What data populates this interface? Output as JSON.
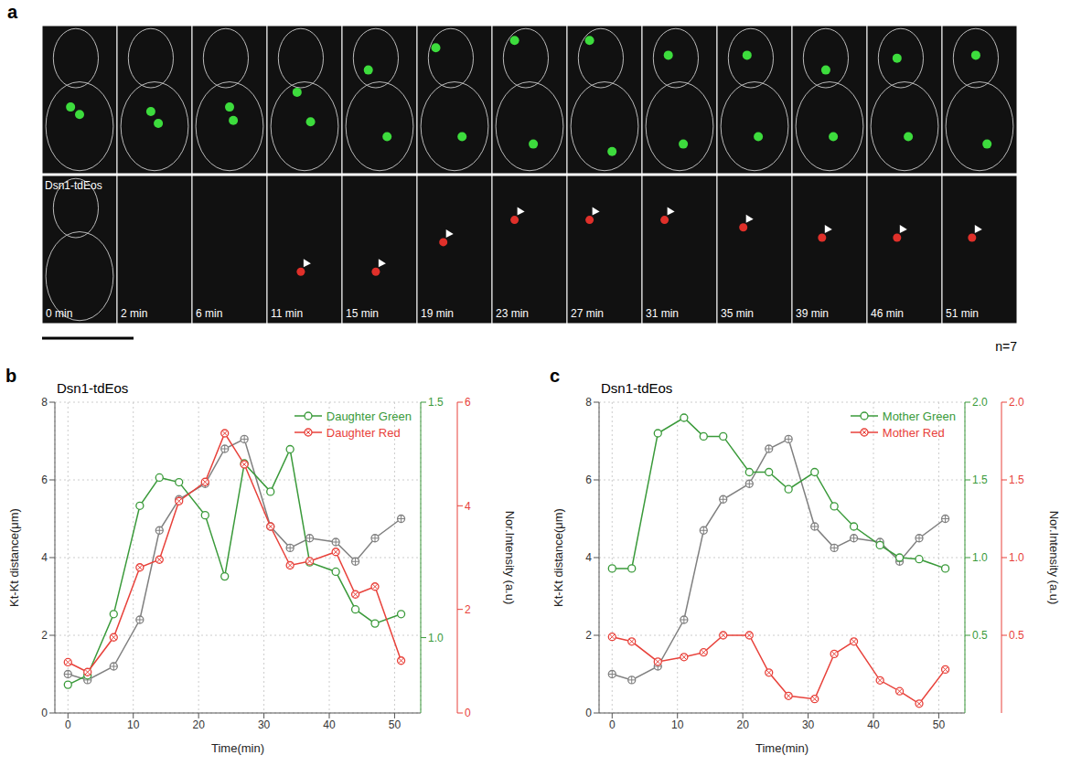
{
  "image_panel": {
    "letter": "a",
    "label": "Dsn1-tdEos",
    "times": [
      "0 min",
      "2 min",
      "6 min",
      "11 min",
      "15 min",
      "19 min",
      "23 min",
      "27 min",
      "31 min",
      "35 min",
      "39 min",
      "46 min",
      "51 min"
    ],
    "n": "n=7"
  },
  "chart_data": [
    {
      "type": "line",
      "letter": "b",
      "title": "Dsn1-tdEos",
      "x_label": "Time(min)",
      "y_label": "Kt-Kt distance(μm)",
      "y2_label": "Nor.Intensity (a.u)",
      "x": [
        0,
        3,
        7,
        11,
        14,
        17,
        21,
        24,
        27,
        31,
        34,
        37,
        41,
        44,
        47,
        51
      ],
      "xlim": [
        -2,
        54
      ],
      "xticks": [
        0,
        10,
        20,
        30,
        40,
        50
      ],
      "ylim": [
        0,
        8
      ],
      "yticks": [
        0,
        2,
        4,
        6,
        8
      ],
      "y2lim": [
        0.84,
        1.5
      ],
      "y2ticks": [
        {
          "value": 1,
          "label": "1.0"
        },
        1.5
      ],
      "y3lim": [
        0,
        6
      ],
      "y3ticks": [
        0,
        2,
        4,
        6
      ],
      "grid": true,
      "legend": "upper right",
      "series": [
        {
          "color": "#808080",
          "marker": "circle_plus",
          "values": [
            1.0,
            0.85,
            1.2,
            2.4,
            4.7,
            5.5,
            5.9,
            6.8,
            7.05,
            4.8,
            4.25,
            4.5,
            4.4,
            3.9,
            4.5,
            5.0
          ]
        },
        {
          "name": "Daughter Green",
          "color": "#3a9a3a",
          "marker": "circle",
          "axis": "y2",
          "values": [
            0.9,
            0.92,
            1.05,
            1.28,
            1.34,
            1.33,
            1.26,
            1.13,
            1.37,
            1.31,
            1.4,
            1.16,
            1.14,
            1.06,
            1.03,
            1.05
          ]
        },
        {
          "name": "Daughter Red",
          "color": "#e8413a",
          "marker": "circle_x",
          "axis": "y3",
          "values": [
            0.98,
            0.79,
            1.46,
            2.81,
            2.96,
            4.09,
            4.46,
            5.4,
            4.8,
            3.6,
            2.85,
            2.93,
            3.11,
            2.29,
            2.44,
            1.01
          ]
        }
      ]
    },
    {
      "type": "line",
      "letter": "c",
      "title": "Dsn1-tdEos",
      "x_label": "Time(min)",
      "y_label": "Kt-Kt distance(μm)",
      "y2_label": "Nor.Intensity (a.u)",
      "x": [
        0,
        3,
        7,
        11,
        14,
        17,
        21,
        24,
        27,
        31,
        34,
        37,
        41,
        44,
        47,
        51
      ],
      "xlim": [
        -2,
        54
      ],
      "xticks": [
        0,
        10,
        20,
        30,
        40,
        50
      ],
      "ylim": [
        0,
        8
      ],
      "yticks": [
        0,
        2,
        4,
        6,
        8
      ],
      "y2lim": [
        0,
        2
      ],
      "y2ticks": [
        0.5,
        {
          "value": 1,
          "label": "1.0"
        },
        1.5,
        {
          "value": 2,
          "label": "2.0"
        }
      ],
      "y3lim": [
        0,
        2
      ],
      "y3ticks": [
        0.5,
        {
          "value": 1,
          "label": "1.0"
        },
        1.5,
        {
          "value": 2,
          "label": "2.0"
        }
      ],
      "grid": true,
      "legend": "upper right",
      "series": [
        {
          "color": "#808080",
          "marker": "circle_plus",
          "values": [
            1.0,
            0.85,
            1.2,
            2.4,
            4.7,
            5.5,
            5.9,
            6.8,
            7.05,
            4.8,
            4.25,
            4.5,
            4.4,
            3.9,
            4.5,
            5.0
          ]
        },
        {
          "name": "Mother Green",
          "color": "#3a9a3a",
          "marker": "circle",
          "axis": "y2",
          "values": [
            0.93,
            0.93,
            1.8,
            1.9,
            1.78,
            1.78,
            1.55,
            1.55,
            1.44,
            1.55,
            1.33,
            1.2,
            1.08,
            1.0,
            0.99,
            0.93
          ]
        },
        {
          "name": "Mother Red",
          "color": "#e8413a",
          "marker": "circle_x",
          "axis": "y3",
          "values": [
            0.49,
            0.46,
            0.33,
            0.36,
            0.39,
            0.5,
            0.5,
            0.26,
            0.11,
            0.09,
            0.38,
            0.46,
            0.21,
            0.14,
            0.06,
            0.28
          ]
        }
      ]
    }
  ]
}
